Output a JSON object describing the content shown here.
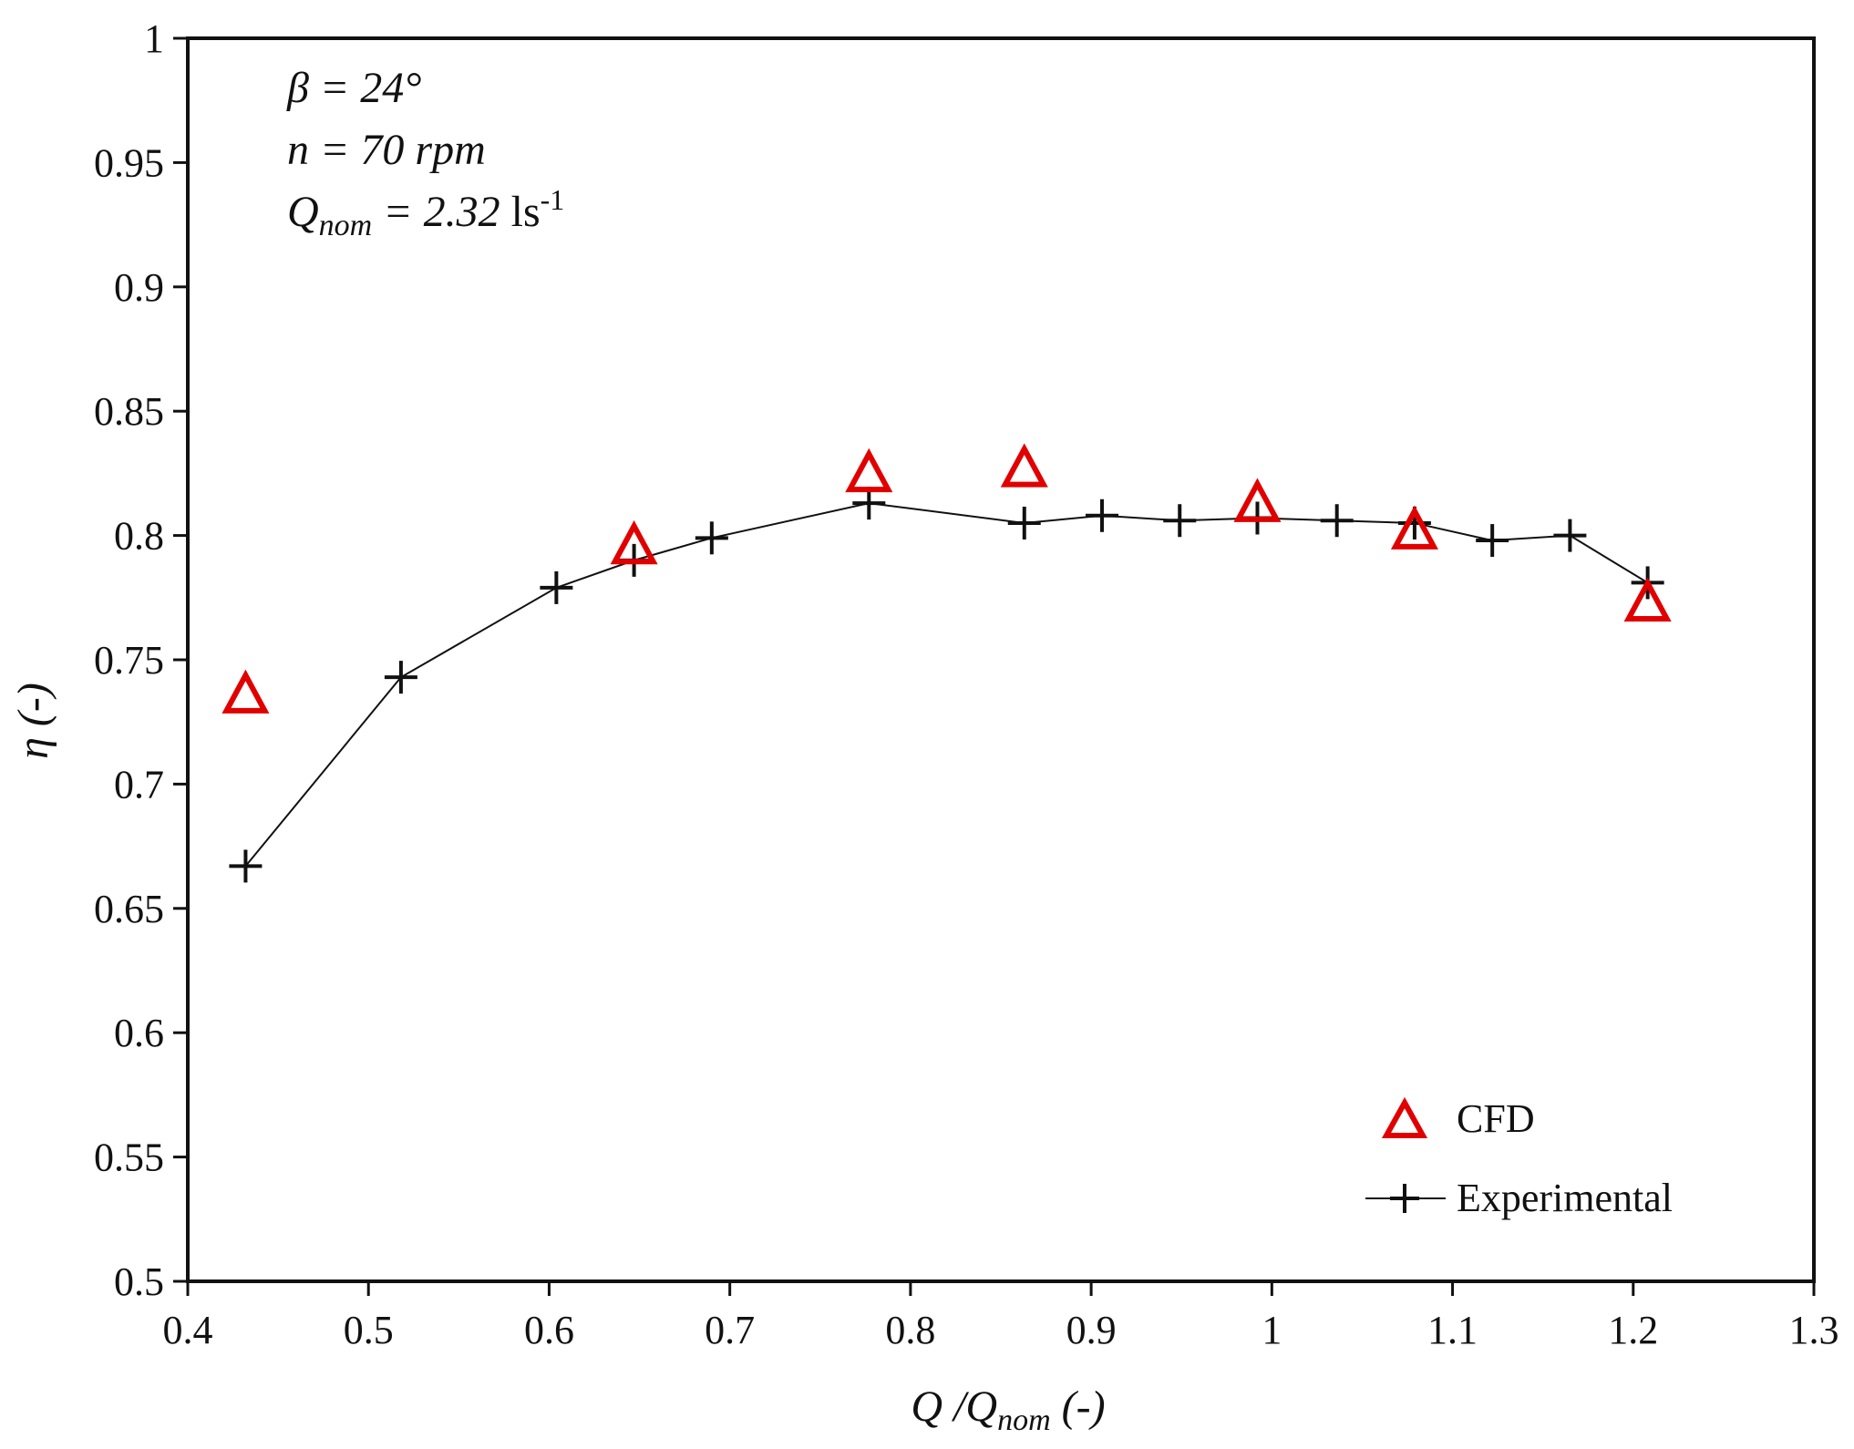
{
  "chart_data": {
    "type": "scatter",
    "title": "",
    "xlabel": {
      "main": "Q /Q",
      "sub": "nom",
      "suffix": " (-)"
    },
    "ylabel": "η (-)",
    "xlim": [
      0.4,
      1.3
    ],
    "ylim": [
      0.5,
      1.0
    ],
    "xticks": [
      "0.4",
      "0.5",
      "0.6",
      "0.7",
      "0.8",
      "0.9",
      "1",
      "1.1",
      "1.2",
      "1.3"
    ],
    "yticks": [
      "0.5",
      "0.55",
      "0.6",
      "0.65",
      "0.7",
      "0.75",
      "0.8",
      "0.85",
      "0.9",
      "0.95",
      "1"
    ],
    "annotations": {
      "beta": "β = 24°",
      "speed": "n = 70 rpm",
      "qnom_main": "Q",
      "qnom_sub": "nom",
      "qnom_value": " = 2.32",
      "qnom_unit": " ls",
      "qnom_exp": "-1"
    },
    "legend": {
      "placement": "bottom-right",
      "cfd": "CFD",
      "experimental": "Experimental"
    },
    "series": [
      {
        "name": "CFD",
        "marker": "triangle",
        "color": "#e10000",
        "x": [
          0.432,
          0.647,
          0.777,
          0.863,
          0.992,
          1.079,
          1.208
        ],
        "y": [
          0.735,
          0.795,
          0.824,
          0.826,
          0.812,
          0.801,
          0.772
        ]
      },
      {
        "name": "Experimental",
        "marker": "plus",
        "color": "#111111",
        "line": true,
        "x": [
          0.432,
          0.518,
          0.604,
          0.647,
          0.69,
          0.777,
          0.863,
          0.906,
          0.949,
          0.992,
          1.036,
          1.079,
          1.122,
          1.165,
          1.208
        ],
        "y": [
          0.667,
          0.743,
          0.779,
          0.79,
          0.799,
          0.813,
          0.805,
          0.808,
          0.806,
          0.807,
          0.806,
          0.805,
          0.798,
          0.8,
          0.781
        ]
      }
    ]
  }
}
